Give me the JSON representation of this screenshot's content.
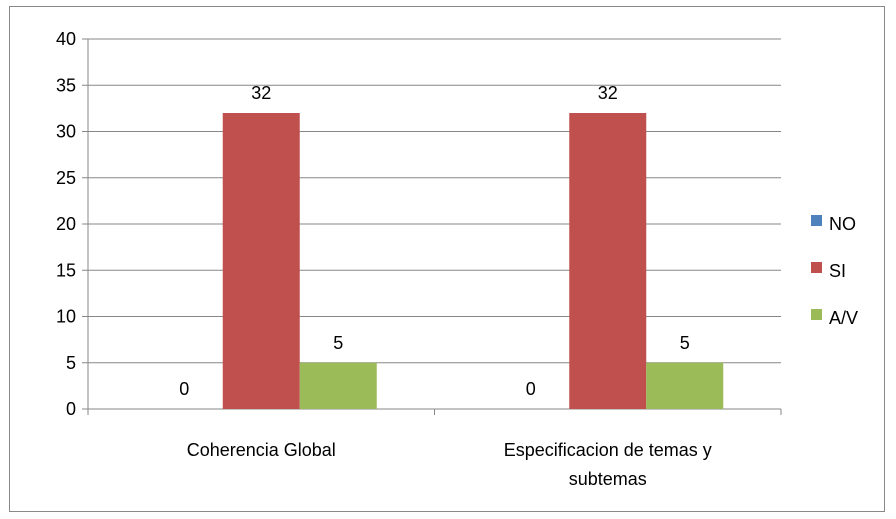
{
  "chart_data": {
    "type": "bar",
    "categories": [
      "Coherencia Global",
      "Especificacion de temas y subtemas"
    ],
    "category_label_lines": [
      [
        "Coherencia Global"
      ],
      [
        "Especificacion de temas y",
        "subtemas"
      ]
    ],
    "series": [
      {
        "name": "NO",
        "values": [
          0,
          0
        ],
        "color": "#4F81BD"
      },
      {
        "name": "SI",
        "values": [
          32,
          32
        ],
        "color": "#C0504D"
      },
      {
        "name": "A/V",
        "values": [
          5,
          5
        ],
        "color": "#9BBB59"
      }
    ],
    "ylim": [
      0,
      40
    ],
    "yticks": [
      0,
      5,
      10,
      15,
      20,
      25,
      30,
      35,
      40
    ],
    "grid": true,
    "legend_position": "right",
    "data_labels": true
  }
}
